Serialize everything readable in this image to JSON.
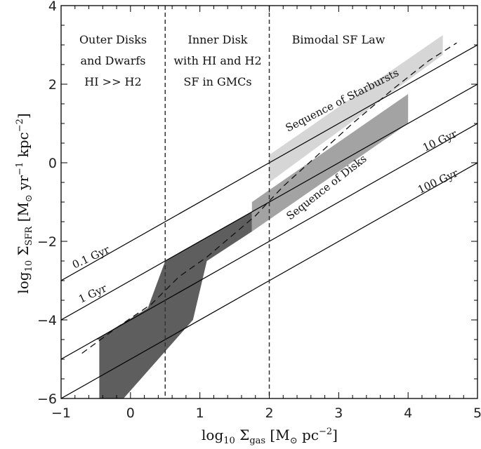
{
  "chart_data": {
    "type": "line",
    "xlim": [
      -1,
      5
    ],
    "ylim": [
      -6,
      4
    ],
    "xticks": [
      -1,
      0,
      1,
      2,
      3,
      4,
      5
    ],
    "yticks": [
      -6,
      -4,
      -2,
      0,
      2,
      4
    ],
    "xlabel": {
      "main": "log",
      "sub1": "10",
      "sym": " Σ",
      "sub2": "gas",
      "unit": " [M",
      "sun": "⊙",
      "unit2": " pc",
      "sup": "−2",
      "close": "]"
    },
    "ylabel": {
      "main": "log",
      "sub1": "10",
      "sym": " Σ",
      "sub2": "SFR",
      "unit": " [M",
      "sun": "⊙",
      "unit2": " yr",
      "sup1": "−1",
      "unit3": " kpc",
      "sup2": "−2",
      "close": "]"
    },
    "dividers": [
      0.5,
      2.0
    ],
    "regions": [
      {
        "lines": [
          "Outer Disks",
          "and Dwarfs",
          "HI >> H2"
        ]
      },
      {
        "lines": [
          "Inner Disk",
          "with HI and H2",
          "SF in GMCs"
        ]
      },
      {
        "lines": [
          "Bimodal SF Law"
        ]
      }
    ],
    "depletion_lines": [
      {
        "name": "0.1 Gyr",
        "intercept": -2.0
      },
      {
        "name": "1 Gyr",
        "intercept": -3.0
      },
      {
        "name": "10 Gyr",
        "intercept": -4.0
      },
      {
        "name": "100 Gyr",
        "intercept": -5.0
      }
    ],
    "bands": [
      {
        "name": "Outer/Inner disk region",
        "color": "#5e5e5e",
        "points": [
          [
            -0.5,
            -4.5
          ],
          [
            0.25,
            -3.7
          ],
          [
            0.5,
            -2.5
          ],
          [
            1.75,
            -1.25
          ],
          [
            1.75,
            -1.75
          ],
          [
            1.1,
            -2.5
          ],
          [
            0.9,
            -4.0
          ],
          [
            -0.1,
            -6.0
          ],
          [
            -0.45,
            -6.0
          ],
          [
            -0.45,
            -4.5
          ]
        ]
      },
      {
        "name": "Sequence of Disks",
        "color": "#a3a3a3",
        "points": [
          [
            1.75,
            -1.0
          ],
          [
            4.0,
            1.75
          ],
          [
            4.0,
            1.0
          ],
          [
            1.75,
            -1.75
          ]
        ]
      },
      {
        "name": "Sequence of Starbursts",
        "color": "#d6d6d6",
        "points": [
          [
            2.0,
            0.2
          ],
          [
            4.5,
            3.25
          ],
          [
            4.5,
            2.75
          ],
          [
            2.0,
            -0.5
          ]
        ]
      }
    ],
    "dashed_curve": [
      [
        -0.7,
        -4.85
      ],
      [
        -0.2,
        -4.2
      ],
      [
        0.3,
        -3.6
      ],
      [
        0.7,
        -2.9
      ],
      [
        1.1,
        -2.4
      ],
      [
        1.5,
        -1.8
      ],
      [
        1.8,
        -1.35
      ],
      [
        2.2,
        -0.6
      ],
      [
        2.7,
        0.2
      ],
      [
        3.2,
        1.0
      ],
      [
        3.8,
        1.9
      ],
      [
        4.3,
        2.6
      ],
      [
        4.7,
        3.05
      ]
    ],
    "annotations": [
      {
        "text": "Sequence of Starbursts"
      },
      {
        "text": "Sequence of Disks"
      },
      {
        "text": "0.1 Gyr"
      },
      {
        "text": "1 Gyr"
      },
      {
        "text": "10 Gyr"
      },
      {
        "text": "100 Gyr"
      }
    ]
  }
}
